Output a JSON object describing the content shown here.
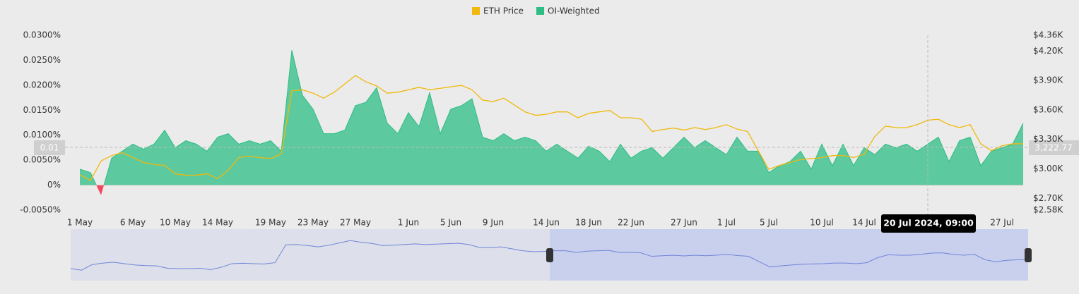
{
  "chart_data": {
    "type": "area_line",
    "categories": [
      "1 May",
      null,
      null,
      null,
      null,
      "6 May",
      null,
      null,
      null,
      "10 May",
      null,
      null,
      null,
      "14 May",
      null,
      null,
      null,
      null,
      "19 May",
      null,
      null,
      null,
      "23 May",
      null,
      null,
      null,
      "27 May",
      null,
      null,
      null,
      null,
      "1 Jun",
      null,
      null,
      null,
      "5 Jun",
      null,
      null,
      null,
      "9 Jun",
      null,
      null,
      null,
      null,
      "14 Jun",
      null,
      null,
      null,
      "18 Jun",
      null,
      null,
      null,
      "22 Jun",
      null,
      null,
      null,
      null,
      "27 Jun",
      null,
      null,
      null,
      "1 Jul",
      null,
      null,
      null,
      "5 Jul",
      null,
      null,
      null,
      null,
      "10 Jul",
      null,
      null,
      null,
      "14 Jul",
      null,
      null,
      null,
      null,
      null,
      null,
      null,
      null,
      null,
      null,
      null,
      null,
      "27 Jul",
      null,
      null
    ],
    "series": [
      {
        "name": "ETH Price",
        "color": "#f0b90b",
        "axis": "y2",
        "values": [
          2940,
          2880,
          3080,
          3135,
          3165,
          3115,
          3065,
          3045,
          3035,
          2950,
          2935,
          2935,
          2950,
          2900,
          2985,
          3115,
          3130,
          3115,
          3105,
          3150,
          3795,
          3805,
          3770,
          3720,
          3780,
          3865,
          3950,
          3885,
          3845,
          3770,
          3780,
          3805,
          3830,
          3805,
          3820,
          3835,
          3850,
          3805,
          3700,
          3685,
          3720,
          3650,
          3580,
          3545,
          3555,
          3580,
          3580,
          3520,
          3565,
          3580,
          3595,
          3520,
          3520,
          3505,
          3380,
          3400,
          3415,
          3395,
          3420,
          3400,
          3420,
          3450,
          3405,
          3380,
          3185,
          2995,
          3035,
          3065,
          3095,
          3105,
          3115,
          3135,
          3135,
          3115,
          3150,
          3330,
          3435,
          3420,
          3420,
          3450,
          3495,
          3505,
          3450,
          3420,
          3450,
          3255,
          3185,
          3235,
          3255,
          3255
        ]
      },
      {
        "name": "OI-Weighted",
        "color": "#2ebd85",
        "negative_color": "#f6465d",
        "values": [
          0.0032,
          0.0025,
          -0.002,
          0.0054,
          0.0068,
          0.0082,
          0.0072,
          0.0082,
          0.011,
          0.0075,
          0.0089,
          0.0082,
          0.0068,
          0.0096,
          0.0103,
          0.0082,
          0.0089,
          0.0082,
          0.0089,
          0.0068,
          0.027,
          0.018,
          0.0152,
          0.0103,
          0.0103,
          0.011,
          0.0159,
          0.0166,
          0.0195,
          0.0124,
          0.0103,
          0.0145,
          0.0117,
          0.0185,
          0.0103,
          0.0152,
          0.0159,
          0.0173,
          0.0096,
          0.0089,
          0.0103,
          0.0089,
          0.0096,
          0.0089,
          0.0068,
          0.0082,
          0.0068,
          0.0054,
          0.0078,
          0.0068,
          0.0047,
          0.0082,
          0.0054,
          0.0068,
          0.0075,
          0.0054,
          0.0075,
          0.0096,
          0.0075,
          0.0089,
          0.0075,
          0.0061,
          0.0096,
          0.0068,
          0.0068,
          0.0025,
          0.0039,
          0.0047,
          0.0068,
          0.0032,
          0.0082,
          0.0039,
          0.0082,
          0.0039,
          0.0075,
          0.0061,
          0.0082,
          0.0075,
          0.0082,
          0.0068,
          0.0082,
          0.0096,
          0.0047,
          0.0089,
          0.0096,
          0.0039,
          0.0068,
          0.0075,
          0.0082,
          0.0124
        ]
      }
    ],
    "ylim": [
      -0.005,
      0.03
    ],
    "yticks": [
      {
        "value": 0.03,
        "label": "0.0300%"
      },
      {
        "value": 0.025,
        "label": "0.0250%"
      },
      {
        "value": 0.02,
        "label": "0.0200%"
      },
      {
        "value": 0.015,
        "label": "0.0150%"
      },
      {
        "value": 0.01,
        "label": "0.0100%"
      },
      {
        "value": 0.005,
        "label": "0.0050%"
      },
      {
        "value": 0,
        "label": "0%"
      },
      {
        "value": -0.005,
        "label": "-0.0050%"
      }
    ],
    "y2lim": [
      2580,
      4360
    ],
    "y2ticks": [
      {
        "value": 4360,
        "label": "$4.36K"
      },
      {
        "value": 4200,
        "label": "$4.20K"
      },
      {
        "value": 3900,
        "label": "$3.90K"
      },
      {
        "value": 3600,
        "label": "$3.60K"
      },
      {
        "value": 3300,
        "label": "$3.30K"
      },
      {
        "value": 3000,
        "label": "$3.00K"
      },
      {
        "value": 2700,
        "label": "$2.70K"
      },
      {
        "value": 2580,
        "label": "$2.58K"
      }
    ],
    "grid": false,
    "legend": "top",
    "crosshair": {
      "date_label": "20 Jul 2024, 09:00",
      "y_label": "0.01",
      "y2_label": "3,222.77"
    }
  }
}
